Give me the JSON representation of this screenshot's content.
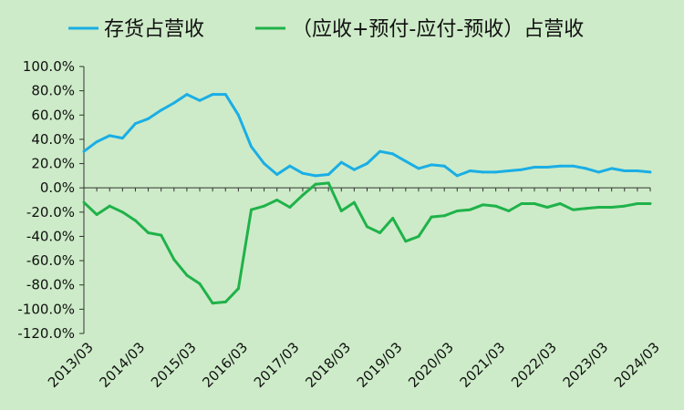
{
  "chart_data": {
    "type": "line",
    "x": [
      "2013/03",
      "2013/06",
      "2013/09",
      "2013/12",
      "2014/03",
      "2014/06",
      "2014/09",
      "2014/12",
      "2015/03",
      "2015/06",
      "2015/09",
      "2015/12",
      "2016/03",
      "2016/06",
      "2016/09",
      "2016/12",
      "2017/03",
      "2017/06",
      "2017/09",
      "2017/12",
      "2018/03",
      "2018/06",
      "2018/09",
      "2018/12",
      "2019/03",
      "2019/06",
      "2019/09",
      "2019/12",
      "2020/03",
      "2020/06",
      "2020/09",
      "2020/12",
      "2021/03",
      "2021/06",
      "2021/09",
      "2021/12",
      "2022/03",
      "2022/06",
      "2022/09",
      "2022/12",
      "2023/03",
      "2023/06",
      "2023/09",
      "2023/12",
      "2024/03"
    ],
    "x_tick_labels": [
      "2013/03",
      "2014/03",
      "2015/03",
      "2016/03",
      "2017/03",
      "2018/03",
      "2019/03",
      "2020/03",
      "2021/03",
      "2022/03",
      "2023/03",
      "2024/03"
    ],
    "y_tick_labels": [
      "100.0%",
      "80.0%",
      "60.0%",
      "40.0%",
      "20.0%",
      "0.0%",
      "-20.0%",
      "-40.0%",
      "-60.0%",
      "-80.0%",
      "-100.0%",
      "-120.0%"
    ],
    "ylim": [
      -120,
      100
    ],
    "legend_position": "top",
    "series": [
      {
        "name": "存货占营收",
        "color": "#1aaee5",
        "values": [
          30,
          38,
          43,
          41,
          53,
          57,
          64,
          70,
          77,
          72,
          77,
          77,
          60,
          34,
          20,
          11,
          18,
          12,
          10,
          11,
          21,
          15,
          20,
          30,
          28,
          22,
          16,
          19,
          18,
          10,
          14,
          13,
          13,
          14,
          15,
          17,
          17,
          18,
          18,
          16,
          13,
          16,
          14,
          14,
          13
        ]
      },
      {
        "name": "（应收+预付-应付-预收）占营收",
        "color": "#1fb24a",
        "values": [
          -12,
          -22,
          -15,
          -20,
          -27,
          -37,
          -39,
          -59,
          -72,
          -79,
          -95,
          -94,
          -83,
          -18,
          -15,
          -10,
          -16,
          -6,
          3,
          4,
          -19,
          -12,
          -32,
          -37,
          -25,
          -44,
          -40,
          -24,
          -23,
          -19,
          -18,
          -14,
          -15,
          -19,
          -13,
          -13,
          -16,
          -13,
          -18,
          -17,
          -16,
          -16,
          -15,
          -13,
          -13
        ]
      }
    ]
  }
}
